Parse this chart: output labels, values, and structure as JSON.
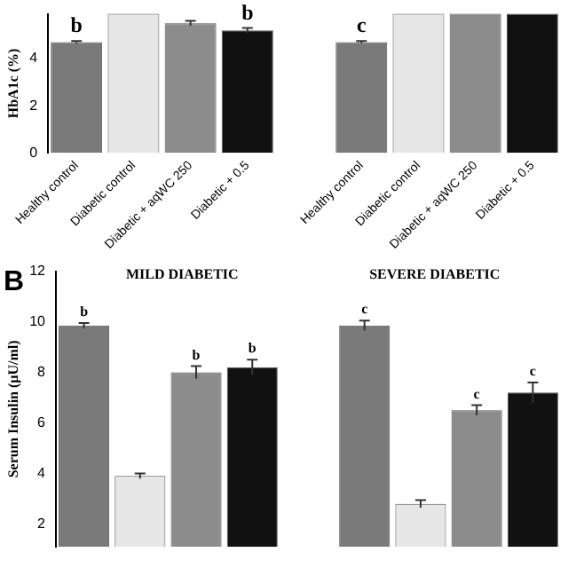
{
  "chart_data": [
    {
      "type": "bar",
      "ylabel": "HbA1c (%)",
      "categories": [
        "Healthy control",
        "Diabetic control",
        "Diabetic + aqWC 250",
        "Diabetic + 0.5",
        null,
        "Healthy control",
        "Diabetic control",
        "Diabetic + aqWC 250",
        "Diabetic + 0.5"
      ],
      "values": [
        4.7,
        5.9,
        5.5,
        5.2,
        null,
        4.7,
        5.9,
        5.9,
        5.9
      ],
      "errors": [
        0.05,
        null,
        0.1,
        0.1,
        null,
        0.05,
        null,
        null,
        null
      ],
      "colors": [
        "#7a7a7a",
        "#e6e6e6",
        "#8c8c8c",
        "#111111",
        "#ffffff",
        "#7a7a7a",
        "#e6e6e6",
        "#8c8c8c",
        "#111111"
      ],
      "value_labels": [
        "b",
        null,
        null,
        "b",
        null,
        "c",
        null,
        null,
        null
      ],
      "ylim": [
        0,
        5.9
      ],
      "yticks": [
        0,
        2,
        4
      ],
      "grid": false,
      "legend": false
    },
    {
      "type": "bar",
      "ylabel": "Serum Insulin (µU/ml)",
      "annotations": [
        "B",
        "MILD DIABETIC",
        "SEVERE DIABETIC"
      ],
      "categories": [
        null,
        null,
        null,
        null,
        null,
        null,
        null,
        null,
        null
      ],
      "values": [
        9.85,
        3.9,
        8.0,
        8.2,
        null,
        9.85,
        2.8,
        6.5,
        7.2
      ],
      "errors": [
        0.1,
        0.1,
        0.25,
        0.3,
        null,
        0.2,
        0.15,
        0.2,
        0.4
      ],
      "colors": [
        "#7a7a7a",
        "#e6e6e6",
        "#8c8c8c",
        "#111111",
        "#ffffff",
        "#7a7a7a",
        "#e6e6e6",
        "#8c8c8c",
        "#111111"
      ],
      "value_labels": [
        "b",
        null,
        "b",
        "b",
        null,
        "c",
        null,
        "c",
        "c"
      ],
      "ylim": [
        1.1,
        12
      ],
      "yticks": [
        2,
        4,
        6,
        8,
        10,
        12
      ],
      "grid": false,
      "legend": false
    }
  ]
}
